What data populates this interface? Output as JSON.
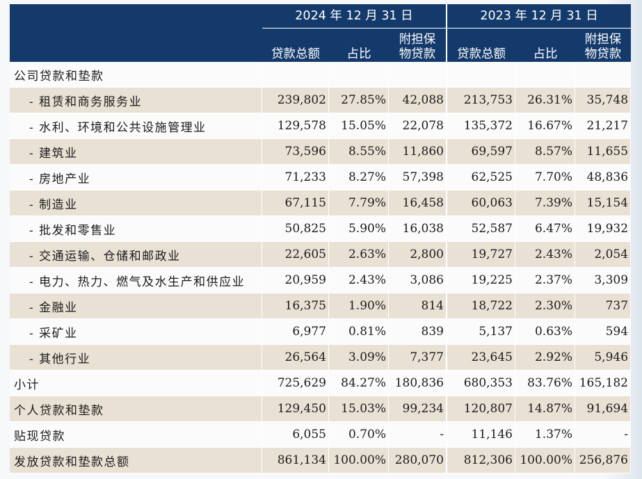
{
  "header": {
    "year_a": "2024 年 12 月 31 日",
    "year_b": "2023 年 12 月 31 日",
    "col_loans": "贷款总额",
    "col_share": "占比",
    "col_collateral_l1": "附担保",
    "col_collateral_l2": "物贷款"
  },
  "section_label": "公司贷款和垫款",
  "industries": [
    {
      "label": "- 租赁和商务服务业",
      "v24": "239,802",
      "p24": "27.85%",
      "c24": "42,088",
      "v23": "213,753",
      "p23": "26.31%",
      "c23": "35,748"
    },
    {
      "label": "- 水利、环境和公共设施管理业",
      "v24": "129,578",
      "p24": "15.05%",
      "c24": "22,078",
      "v23": "135,372",
      "p23": "16.67%",
      "c23": "21,217"
    },
    {
      "label": "- 建筑业",
      "v24": "73,596",
      "p24": "8.55%",
      "c24": "11,860",
      "v23": "69,597",
      "p23": "8.57%",
      "c23": "11,655"
    },
    {
      "label": "- 房地产业",
      "v24": "71,233",
      "p24": "8.27%",
      "c24": "57,398",
      "v23": "62,525",
      "p23": "7.70%",
      "c23": "48,836"
    },
    {
      "label": "- 制造业",
      "v24": "67,115",
      "p24": "7.79%",
      "c24": "16,458",
      "v23": "60,063",
      "p23": "7.39%",
      "c23": "15,154"
    },
    {
      "label": "- 批发和零售业",
      "v24": "50,825",
      "p24": "5.90%",
      "c24": "16,038",
      "v23": "52,587",
      "p23": "6.47%",
      "c23": "19,932"
    },
    {
      "label": "- 交通运输、仓储和邮政业",
      "v24": "22,605",
      "p24": "2.63%",
      "c24": "2,800",
      "v23": "19,727",
      "p23": "2.43%",
      "c23": "2,054"
    },
    {
      "label": "- 电力、热力、燃气及水生产和供应业",
      "v24": "20,959",
      "p24": "2.43%",
      "c24": "3,086",
      "v23": "19,225",
      "p23": "2.37%",
      "c23": "3,309"
    },
    {
      "label": "- 金融业",
      "v24": "16,375",
      "p24": "1.90%",
      "c24": "814",
      "v23": "18,722",
      "p23": "2.30%",
      "c23": "737"
    },
    {
      "label": "- 采矿业",
      "v24": "6,977",
      "p24": "0.81%",
      "c24": "839",
      "v23": "5,137",
      "p23": "0.63%",
      "c23": "594"
    },
    {
      "label": "- 其他行业",
      "v24": "26,564",
      "p24": "3.09%",
      "c24": "7,377",
      "v23": "23,645",
      "p23": "2.92%",
      "c23": "5,946"
    }
  ],
  "totals": [
    {
      "label": "小计",
      "v24": "725,629",
      "p24": "84.27%",
      "c24": "180,836",
      "v23": "680,353",
      "p23": "83.76%",
      "c23": "165,182"
    },
    {
      "label": "个人贷款和垫款",
      "v24": "129,450",
      "p24": "15.03%",
      "c24": "99,234",
      "v23": "120,807",
      "p23": "14.87%",
      "c23": "91,694"
    },
    {
      "label": "贴现贷款",
      "v24": "6,055",
      "p24": "0.70%",
      "c24": "-",
      "v23": "11,146",
      "p23": "1.37%",
      "c23": "-"
    },
    {
      "label": "发放贷款和垫款总额",
      "v24": "861,134",
      "p24": "100.00%",
      "c24": "280,070",
      "v23": "812,306",
      "p23": "100.00%",
      "c23": "256,876"
    }
  ]
}
